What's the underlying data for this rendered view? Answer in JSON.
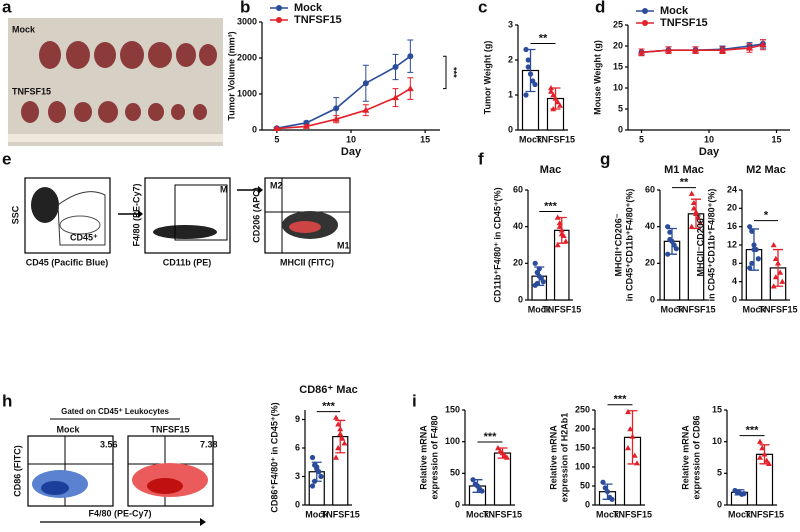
{
  "photo": {
    "panel": "a",
    "labels": [
      "Mock",
      "TNFSF15"
    ]
  },
  "flow_e": {
    "panel": "e",
    "texts": [
      "SSC",
      "CD45 (Pacific Blue)",
      "CD45⁺",
      "F4/80 (PE-Cy7)",
      "CD11b (PE)",
      "M",
      "CD206 (APC)",
      "MHCII (FITC)",
      "M2",
      "M1"
    ]
  },
  "flow_h": {
    "panel": "h",
    "gate": "Gated on CD45⁺ Leukocytes",
    "groups": [
      "Mock",
      "TNFSF15"
    ],
    "percents": [
      "3.56",
      "7.38"
    ],
    "y_label": "CD86 (FITC)",
    "x_label": "F4/80 (PE-Cy7)"
  },
  "chart_data": [
    {
      "type": "line",
      "panel": "b",
      "x_label": "Day",
      "y_label": "Tumor Volume (mm³)",
      "x": [
        5,
        7,
        9,
        11,
        13,
        14
      ],
      "series": [
        {
          "name": "Mock",
          "color": "#2b4c9b",
          "values": [
            50,
            200,
            600,
            1300,
            1750,
            2050
          ],
          "errors": [
            20,
            50,
            300,
            500,
            350,
            450
          ]
        },
        {
          "name": "TNFSF15",
          "color": "#e3212a",
          "values": [
            40,
            100,
            300,
            550,
            900,
            1150
          ],
          "errors": [
            20,
            40,
            100,
            150,
            250,
            300
          ]
        }
      ],
      "xlim": [
        4,
        16
      ],
      "xticks": [
        5,
        10,
        15
      ],
      "ylim": [
        0,
        3000
      ],
      "yticks": [
        0,
        1000,
        2000,
        3000
      ],
      "legend": "upper left",
      "significance": "***"
    },
    {
      "type": "bar",
      "panel": "c",
      "y_label": "Tumor Weight (g)",
      "categories": [
        "Mock",
        "TNFSF15"
      ],
      "colors": [
        "#2b4c9b",
        "#e3212a"
      ],
      "values": [
        1.7,
        0.9
      ],
      "errors": [
        0.6,
        0.3
      ],
      "points": [
        [
          2.3,
          2.0,
          1.6,
          1.4,
          1.3,
          1.0,
          1.8
        ],
        [
          1.2,
          1.0,
          0.9,
          0.8,
          0.7,
          1.1,
          0.6
        ]
      ],
      "ylim": [
        0,
        3
      ],
      "yticks": [
        0,
        1,
        2,
        3
      ],
      "significance": "**"
    },
    {
      "type": "line",
      "panel": "d",
      "x_label": "Day",
      "y_label": "Mouse Weight (g)",
      "x": [
        5,
        7,
        9,
        11,
        13,
        14
      ],
      "series": [
        {
          "name": "Mock",
          "color": "#2b4c9b",
          "values": [
            18.5,
            19,
            19,
            19.2,
            20,
            20.5
          ],
          "errors": [
            0.8,
            0.8,
            0.8,
            0.8,
            0.8,
            1
          ]
        },
        {
          "name": "TNFSF15",
          "color": "#e3212a",
          "values": [
            18.5,
            19,
            19,
            19,
            19.5,
            20.3
          ],
          "errors": [
            0.8,
            0.8,
            0.8,
            0.8,
            1,
            1.2
          ]
        }
      ],
      "xlim": [
        4,
        16
      ],
      "xticks": [
        5,
        10,
        15
      ],
      "ylim": [
        0,
        25
      ],
      "yticks": [
        0,
        5,
        10,
        15,
        20,
        25
      ],
      "legend": "upper left"
    },
    {
      "type": "bar",
      "panel": "f",
      "title": "Mac",
      "y_label": "CD11b⁺F4/80⁺ in CD45⁺(%)",
      "categories": [
        "Mock",
        "TNFSF15"
      ],
      "colors": [
        "#2b4c9b",
        "#e3212a"
      ],
      "values": [
        13,
        38
      ],
      "errors": [
        5,
        7
      ],
      "points": [
        [
          20,
          15,
          13,
          12,
          10,
          8,
          9,
          17
        ],
        [
          45,
          40,
          38,
          35,
          32,
          30,
          42,
          36
        ]
      ],
      "ylim": [
        0,
        60
      ],
      "yticks": [
        0,
        20,
        40,
        60
      ],
      "significance": "***"
    },
    {
      "type": "bar",
      "panel": "g",
      "title": "M1 Mac",
      "y_label": [
        "MHCII⁺CD206⁻",
        "in CD45⁺CD11b⁺F4/80⁺(%)"
      ],
      "categories": [
        "Mock",
        "TNFSF15"
      ],
      "colors": [
        "#2b4c9b",
        "#e3212a"
      ],
      "values": [
        32,
        47
      ],
      "errors": [
        7,
        8
      ],
      "points": [
        [
          40,
          37,
          32,
          30,
          28,
          25,
          33
        ],
        [
          58,
          53,
          48,
          45,
          42,
          40,
          50,
          47
        ]
      ],
      "ylim": [
        0,
        60
      ],
      "yticks": [
        0,
        20,
        40,
        60
      ],
      "significance": "**"
    },
    {
      "type": "bar",
      "title": "M2 Mac",
      "y_label": [
        "MHCII⁻CD206⁺",
        "in CD45⁺CD11b⁺F4/80⁺(%)"
      ],
      "categories": [
        "Mock",
        "TNFSF15"
      ],
      "colors": [
        "#2b4c9b",
        "#e3212a"
      ],
      "values": [
        11,
        7
      ],
      "errors": [
        4.5,
        4
      ],
      "points": [
        [
          16,
          15,
          12,
          11,
          9,
          7,
          8,
          11
        ],
        [
          12,
          9,
          8,
          6,
          4,
          3,
          5,
          8
        ]
      ],
      "ylim": [
        0,
        24
      ],
      "yticks": [
        0,
        4,
        8,
        12,
        16,
        20,
        24
      ],
      "significance": "*"
    },
    {
      "type": "bar",
      "title": "CD86⁺ Mac",
      "y_label": "CD86⁺F4/80⁺ in CD45⁺(%)",
      "categories": [
        "Mock",
        "TNFSF15"
      ],
      "colors": [
        "#2b4c9b",
        "#e3212a"
      ],
      "values": [
        3.5,
        7.2
      ],
      "errors": [
        1,
        1.7
      ],
      "points": [
        [
          5,
          4.2,
          3.8,
          3.5,
          3,
          2,
          2.5,
          4
        ],
        [
          9.2,
          8.5,
          7.5,
          7,
          6.5,
          5,
          6,
          8
        ]
      ],
      "ylim": [
        0,
        10
      ],
      "yticks": [
        0,
        3,
        6,
        9
      ],
      "significance": "***"
    },
    {
      "type": "bar",
      "panel": "i",
      "y_label": [
        "Relative mRNA",
        "expression of F4/80"
      ],
      "categories": [
        "Mock",
        "TNFSF15"
      ],
      "colors": [
        "#2b4c9b",
        "#e3212a"
      ],
      "values": [
        30,
        82
      ],
      "errors": [
        10,
        8
      ],
      "points": [
        [
          40,
          33,
          30,
          25,
          22
        ],
        [
          90,
          85,
          82,
          78,
          75
        ]
      ],
      "ylim": [
        0,
        150
      ],
      "yticks": [
        0,
        50,
        100,
        150
      ],
      "significance": "***"
    },
    {
      "type": "bar",
      "y_label": [
        "Relative mRNA",
        "expression of H2Ab1"
      ],
      "categories": [
        "Mock",
        "TNFSF15"
      ],
      "colors": [
        "#2b4c9b",
        "#e3212a"
      ],
      "values": [
        35,
        178
      ],
      "errors": [
        20,
        70
      ],
      "points": [
        [
          60,
          45,
          35,
          20,
          15
        ],
        [
          245,
          200,
          180,
          130,
          110,
          150
        ]
      ],
      "ylim": [
        0,
        250
      ],
      "yticks": [
        0,
        50,
        100,
        150,
        200,
        250
      ],
      "significance": "***"
    },
    {
      "type": "bar",
      "y_label": [
        "Relative mRNA",
        "expression of CD86"
      ],
      "categories": [
        "Mock",
        "TNFSF15"
      ],
      "colors": [
        "#2b4c9b",
        "#e3212a"
      ],
      "values": [
        2,
        8
      ],
      "errors": [
        0.4,
        1.5
      ],
      "points": [
        [
          2.3,
          2.0,
          1.9,
          1.7,
          1.8
        ],
        [
          10,
          9,
          8,
          7,
          6.5,
          7.5
        ]
      ],
      "ylim": [
        0,
        15
      ],
      "yticks": [
        0,
        5,
        10,
        15
      ],
      "significance": "***"
    }
  ]
}
